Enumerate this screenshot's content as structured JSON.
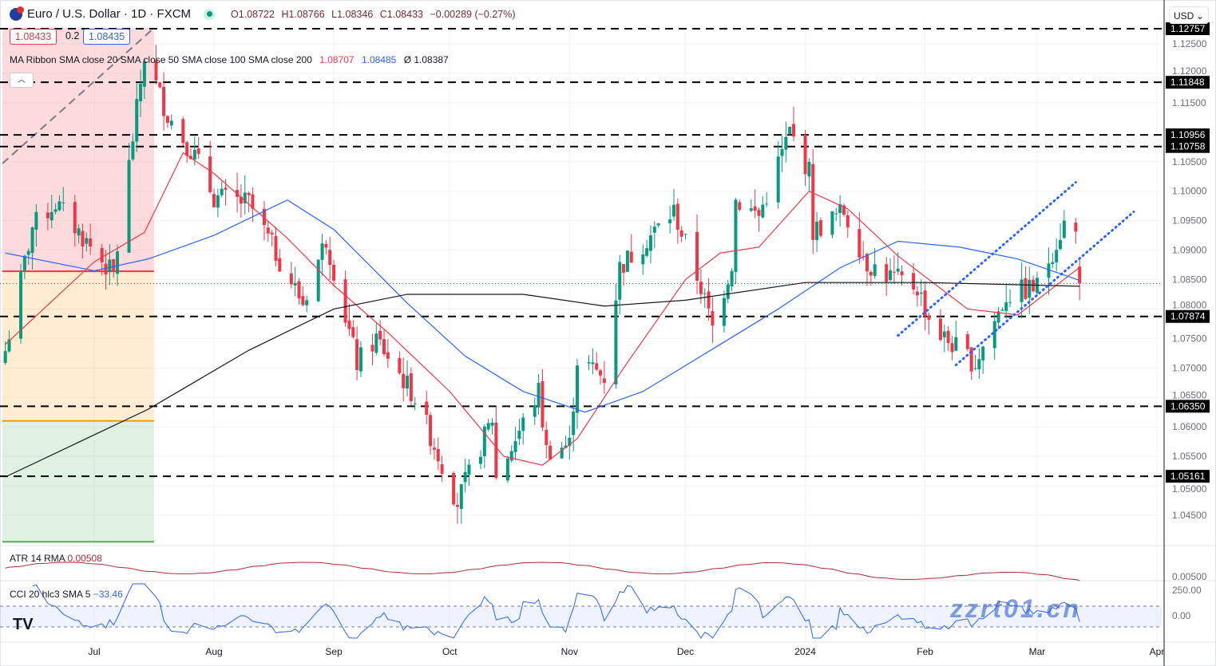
{
  "header": {
    "symbol": "Euro / U.S. Dollar · 1D · FXCM",
    "open": "O1.08722",
    "high": "H1.08766",
    "low": "L1.08346",
    "close": "C1.08433",
    "change": "−0.00289 (−0.27%)"
  },
  "price_boxes": {
    "bid": "1.08433",
    "spread": "0.2",
    "ask": "1.08435"
  },
  "currency_selector": "USD",
  "ma_legend": {
    "label": "MA Ribbon SMA close 20 SMA close 50 SMA close 100 SMA close 200",
    "v20": "1.08707",
    "v50": "1.08485",
    "v200": "Ø 1.08387"
  },
  "atr_legend": {
    "label": "ATR 14 RMA",
    "value": "0.00508"
  },
  "cci_legend": {
    "label": "CCI 20 hlc3 SMA 5",
    "value": "−33.46"
  },
  "watermark": "zzrt01.cn",
  "colors": {
    "up": "#089981",
    "down": "#f23645",
    "sma20": "#f23645",
    "sma50": "#2962ff",
    "sma200": "#131722",
    "atr": "#b22833",
    "cci": "#2962ff"
  },
  "chart_data": {
    "type": "candlestick",
    "price_axis": {
      "ylim": [
        1.04,
        1.1285
      ],
      "ticks": [
        "1.12500",
        "1.12000",
        "1.11500",
        "1.10500",
        "1.10000",
        "1.09500",
        "1.09000",
        "1.08500",
        "1.08000",
        "1.07500",
        "1.07000",
        "1.06500",
        "1.06000",
        "1.05500",
        "1.05000",
        "1.04500"
      ]
    },
    "time_axis": {
      "ticks": [
        {
          "label": "Jul",
          "date": "2023-07-01"
        },
        {
          "label": "Aug",
          "date": "2023-08-01"
        },
        {
          "label": "Sep",
          "date": "2023-09-01"
        },
        {
          "label": "Oct",
          "date": "2023-10-01"
        },
        {
          "label": "Nov",
          "date": "2023-11-01"
        },
        {
          "label": "Dec",
          "date": "2023-12-01"
        },
        {
          "label": "2024",
          "date": "2024-01-01"
        },
        {
          "label": "Feb",
          "date": "2024-02-01"
        },
        {
          "label": "Mar",
          "date": "2024-03-01"
        },
        {
          "label": "Apr",
          "date": "2024-04-01"
        }
      ]
    },
    "horizontal_levels": [
      "1.12757",
      "1.11848",
      "1.10956",
      "1.10758",
      "1.07874",
      "1.06350",
      "1.05161"
    ],
    "last_price": 1.08433,
    "last_candle": {
      "open": 1.08722,
      "high": 1.08766,
      "low": 1.08346,
      "close": 1.08433
    },
    "close_path": [
      [
        "2023-06-08",
        1.0729
      ],
      [
        "2023-06-15",
        1.0939
      ],
      [
        "2023-06-21",
        1.098
      ],
      [
        "2023-07-06",
        1.0857
      ],
      [
        "2023-07-14",
        1.123
      ],
      [
        "2023-07-20",
        1.113
      ],
      [
        "2023-07-27",
        1.106
      ],
      [
        "2023-08-01",
        1.099
      ],
      [
        "2023-08-10",
        1.098
      ],
      [
        "2023-08-24",
        1.081
      ],
      [
        "2023-08-30",
        1.092
      ],
      [
        "2023-09-07",
        1.0708
      ],
      [
        "2023-09-12",
        1.075
      ],
      [
        "2023-09-22",
        1.065
      ],
      [
        "2023-10-03",
        1.0472
      ],
      [
        "2023-10-12",
        1.0614
      ],
      [
        "2023-10-13",
        1.0512
      ],
      [
        "2023-10-24",
        1.066
      ],
      [
        "2023-10-26",
        1.056
      ],
      [
        "2023-11-01",
        1.057
      ],
      [
        "2023-11-03",
        1.0715
      ],
      [
        "2023-11-10",
        1.0685
      ],
      [
        "2023-11-14",
        1.0871
      ],
      [
        "2023-11-28",
        1.0966
      ],
      [
        "2023-12-05",
        1.0837
      ],
      [
        "2023-12-08",
        1.0768
      ],
      [
        "2023-12-13",
        1.0878
      ],
      [
        "2023-12-14",
        1.0986
      ],
      [
        "2023-12-20",
        1.0958
      ],
      [
        "2023-12-28",
        1.1101
      ],
      [
        "2024-01-02",
        1.1033
      ],
      [
        "2024-01-03",
        1.0932
      ],
      [
        "2024-01-11",
        1.0966
      ],
      [
        "2024-01-17",
        1.0878
      ],
      [
        "2024-01-23",
        1.0855
      ],
      [
        "2024-01-30",
        1.0837
      ],
      [
        "2024-02-02",
        1.0785
      ],
      [
        "2024-02-05",
        1.0756
      ],
      [
        "2024-02-14",
        1.0708
      ],
      [
        "2024-02-22",
        1.0823
      ],
      [
        "2024-03-01",
        1.0838
      ],
      [
        "2024-03-08",
        1.0945
      ],
      [
        "2024-03-11",
        1.0927
      ],
      [
        "2024-03-12",
        1.08433
      ]
    ],
    "series": [
      {
        "name": "SMA close 20",
        "values": [
          [
            "2023-06-08",
            1.074
          ],
          [
            "2023-07-01",
            1.088
          ],
          [
            "2023-07-14",
            1.093
          ],
          [
            "2023-07-24",
            1.1065
          ],
          [
            "2023-08-01",
            1.103
          ],
          [
            "2023-08-20",
            1.092
          ],
          [
            "2023-09-01",
            1.084
          ],
          [
            "2023-09-15",
            1.076
          ],
          [
            "2023-10-01",
            1.066
          ],
          [
            "2023-10-15",
            1.055
          ],
          [
            "2023-10-25",
            1.0535
          ],
          [
            "2023-11-03",
            1.058
          ],
          [
            "2023-11-15",
            1.07
          ],
          [
            "2023-12-01",
            1.085
          ],
          [
            "2023-12-10",
            1.0895
          ],
          [
            "2023-12-20",
            1.0905
          ],
          [
            "2024-01-02",
            1.1
          ],
          [
            "2024-01-12",
            1.097
          ],
          [
            "2024-01-25",
            1.089
          ],
          [
            "2024-02-12",
            1.08
          ],
          [
            "2024-02-25",
            1.079
          ],
          [
            "2024-03-12",
            1.08707
          ]
        ]
      },
      {
        "name": "SMA close 50",
        "values": [
          [
            "2023-06-08",
            1.0895
          ],
          [
            "2023-07-01",
            1.0865
          ],
          [
            "2023-07-15",
            1.0885
          ],
          [
            "2023-08-01",
            1.0925
          ],
          [
            "2023-08-20",
            1.0985
          ],
          [
            "2023-09-01",
            1.0935
          ],
          [
            "2023-09-20",
            1.081
          ],
          [
            "2023-10-05",
            1.072
          ],
          [
            "2023-10-20",
            1.066
          ],
          [
            "2023-11-05",
            1.0625
          ],
          [
            "2023-11-20",
            1.066
          ],
          [
            "2023-12-05",
            1.072
          ],
          [
            "2023-12-25",
            1.08
          ],
          [
            "2024-01-10",
            1.087
          ],
          [
            "2024-01-25",
            1.0915
          ],
          [
            "2024-02-10",
            1.0905
          ],
          [
            "2024-02-25",
            1.0885
          ],
          [
            "2024-03-12",
            1.08485
          ]
        ]
      },
      {
        "name": "SMA close 200",
        "values": [
          [
            "2023-06-08",
            1.0515
          ],
          [
            "2023-07-15",
            1.063
          ],
          [
            "2023-08-10",
            1.073
          ],
          [
            "2023-09-01",
            1.08
          ],
          [
            "2023-09-20",
            1.0825
          ],
          [
            "2023-10-20",
            1.0825
          ],
          [
            "2023-11-10",
            1.0805
          ],
          [
            "2023-12-01",
            1.0815
          ],
          [
            "2024-01-01",
            1.0845
          ],
          [
            "2024-02-01",
            1.0845
          ],
          [
            "2024-03-12",
            1.08387
          ]
        ]
      }
    ],
    "channel_lines": [
      [
        [
          "2024-01-25",
          1.0755
        ],
        [
          "2024-03-11",
          1.1015
        ]
      ],
      [
        [
          "2024-02-09",
          1.0705
        ],
        [
          "2024-03-26",
          1.0965
        ]
      ]
    ],
    "atr_axis": {
      "ticks": [
        "0.00500"
      ]
    },
    "cci_axis": {
      "ticks": [
        "250.00",
        "0.00"
      ]
    }
  }
}
